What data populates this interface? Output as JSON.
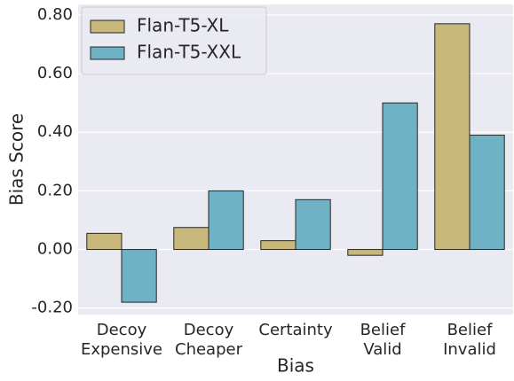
{
  "chart_data": {
    "type": "bar",
    "x_label": "Bias",
    "y_label": "Bias Score",
    "categories": [
      [
        "Decoy",
        "Expensive"
      ],
      [
        "Decoy",
        "Cheaper"
      ],
      [
        "Certainty"
      ],
      [
        "Belief",
        "Valid"
      ],
      [
        "Belief",
        "Invalid"
      ]
    ],
    "series": [
      {
        "name": "Flan-T5-XL",
        "color": "#c9b87b",
        "values": [
          0.055,
          0.075,
          0.03,
          -0.02,
          0.77
        ]
      },
      {
        "name": "Flan-T5-XXL",
        "color": "#6fb2c6",
        "values": [
          -0.18,
          0.2,
          0.17,
          0.5,
          0.39
        ]
      }
    ],
    "ylim": [
      -0.222,
      0.836
    ],
    "yticks": [
      {
        "value": -0.2,
        "label": "-0.20"
      },
      {
        "value": 0,
        "label": "0.00"
      },
      {
        "value": 0.2,
        "label": "0.20"
      },
      {
        "value": 0.4,
        "label": "0.40"
      },
      {
        "value": 0.6,
        "label": "0.60"
      },
      {
        "value": 0.8,
        "label": "0.80"
      }
    ],
    "grid": true,
    "legend": "upper left"
  }
}
